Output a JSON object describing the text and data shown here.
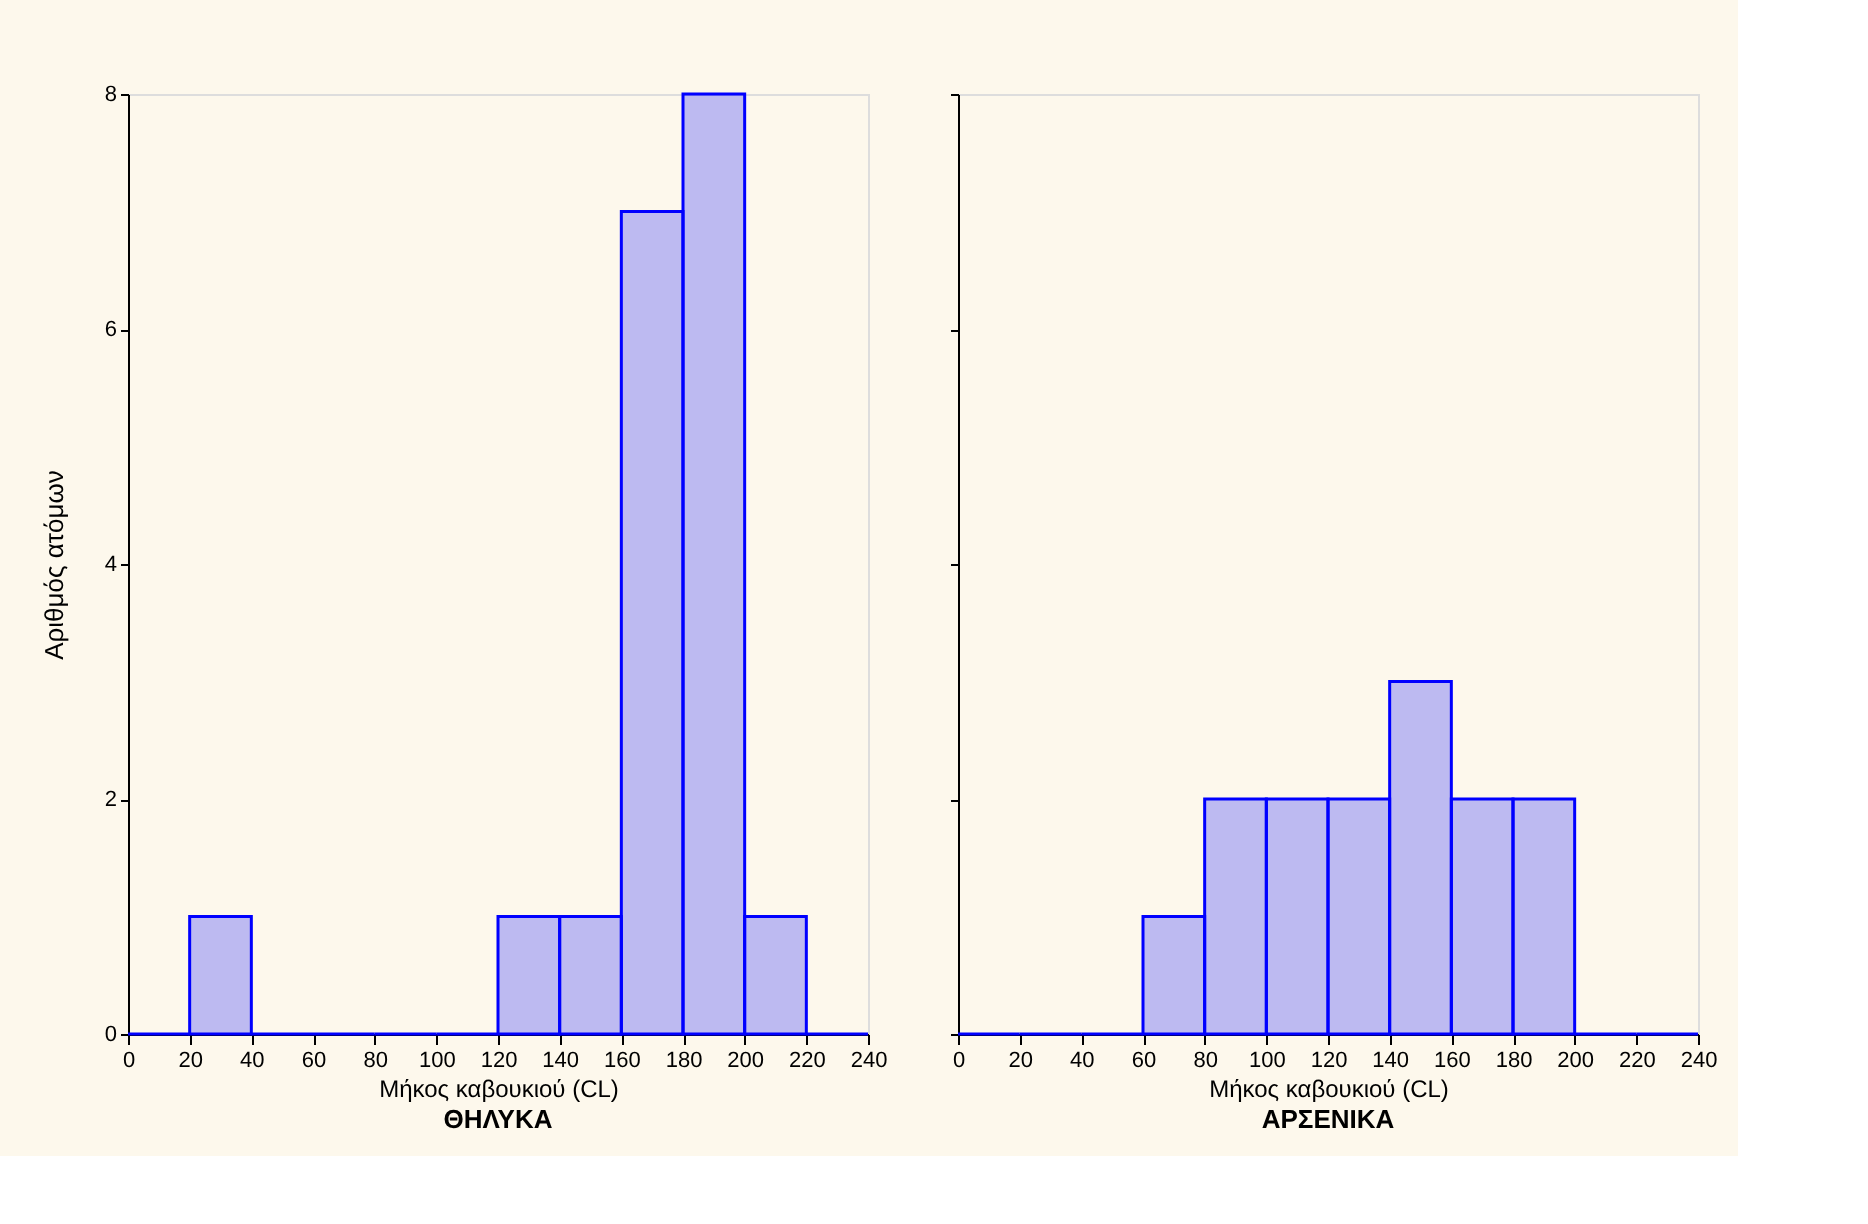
{
  "chart_data": [
    {
      "type": "histogram",
      "title": "ΘΗΛΥΚΑ",
      "xlabel": "Μήκος καβουκιού (CL)",
      "ylabel": "Αριθμός ατόμων",
      "bins": [
        0,
        20,
        40,
        60,
        80,
        100,
        120,
        140,
        160,
        180,
        200,
        220,
        240
      ],
      "values": [
        0,
        1,
        0,
        0,
        0,
        0,
        1,
        1,
        7,
        8,
        1,
        0
      ],
      "color": "#0000ff",
      "xlim": [
        0,
        240
      ],
      "xticks": [
        0,
        20,
        40,
        60,
        80,
        100,
        120,
        140,
        160,
        180,
        200,
        220,
        240
      ],
      "ylim": [
        0,
        8
      ],
      "yticks": [
        0,
        2,
        4,
        6,
        8
      ],
      "grid": false
    },
    {
      "type": "histogram",
      "title": "ΑΡΣΕΝΙΚΑ",
      "xlabel": "Μήκος καβουκιού (CL)",
      "bins": [
        0,
        20,
        40,
        60,
        80,
        100,
        120,
        140,
        160,
        180,
        200,
        220,
        240
      ],
      "values": [
        0,
        0,
        0,
        1,
        2,
        2,
        2,
        3,
        2,
        2,
        0,
        0
      ],
      "color": "#0000ff",
      "xlim": [
        0,
        240
      ],
      "xticks": [
        0,
        20,
        40,
        60,
        80,
        100,
        120,
        140,
        160,
        180,
        200,
        220,
        240
      ],
      "ylim": [
        0,
        8
      ],
      "yticks": [
        0,
        2,
        4,
        6,
        8
      ],
      "tick_labels": "x",
      "grid": false
    }
  ]
}
